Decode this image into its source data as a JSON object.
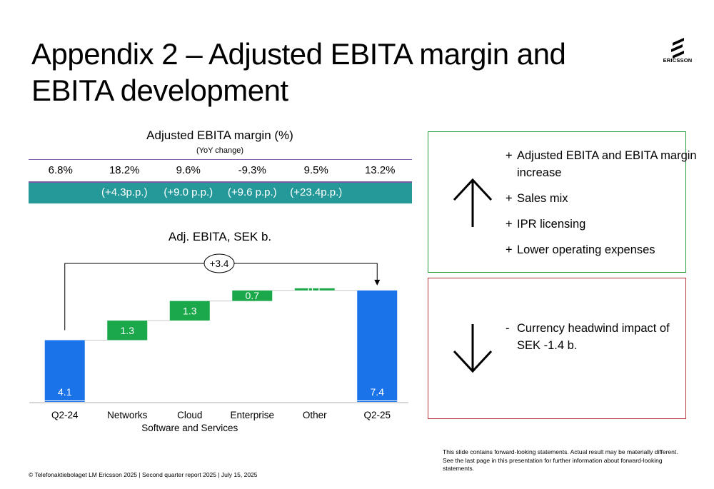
{
  "slide": {
    "title": "Appendix 2 – Adjusted EBITA margin and EBITA development",
    "logo_text": "ERICSSON",
    "footer": "© Telefonaktiebolaget LM Ericsson 2025 | Second quarter report 2025 | July 15, 2025",
    "disclaimer": "This slide contains forward-looking statements. Actual result may be materially different. See the last page in this presentation for further information about forward-looking statements."
  },
  "margin_table": {
    "title": "Adjusted  EBITA margin (%)",
    "subtitle": "(YoY change)",
    "values": [
      "6.8%",
      "18.2%",
      "9.6%",
      "-9.3%",
      "9.5%",
      "13.2%"
    ],
    "changes": [
      "",
      "(+4.3p.p.)",
      "(+9.0 p.p.)",
      "(+9.6 p.p.)",
      "(+23.4p.p.)",
      ""
    ],
    "colors": {
      "band": "#25999a",
      "line": "#7b5aa6"
    }
  },
  "chart_data": {
    "type": "bar",
    "subtype": "waterfall",
    "title": "Adj. EBITA, SEK b.",
    "categories": [
      "Q2-24",
      "Networks",
      "Cloud Software and Services",
      "Enterprise",
      "Other",
      "Q2-25"
    ],
    "values": [
      4.1,
      1.3,
      1.3,
      0.7,
      0.1,
      7.4
    ],
    "labels": [
      "4.1",
      "1.3",
      "1.3",
      "0.7",
      "0.1",
      "7.4"
    ],
    "kinds": [
      "total",
      "delta",
      "delta",
      "delta",
      "delta",
      "total"
    ],
    "bridge_label": "+3.4",
    "colors": {
      "total": "#1a73e8",
      "delta": "#1aa84a"
    }
  },
  "drivers": {
    "positive": [
      {
        "mark": "+",
        "text": "Adjusted EBITA and EBITA margin increase"
      },
      {
        "mark": "+",
        "text": "Sales mix"
      },
      {
        "mark": "+",
        "text": "IPR licensing"
      },
      {
        "mark": "+",
        "text": "Lower operating expenses"
      }
    ],
    "negative": [
      {
        "mark": "-",
        "text": "Currency headwind impact of SEK -1.4 b."
      }
    ],
    "colors": {
      "positive_border": "#1f9a3c",
      "negative_border": "#b5303a"
    }
  }
}
